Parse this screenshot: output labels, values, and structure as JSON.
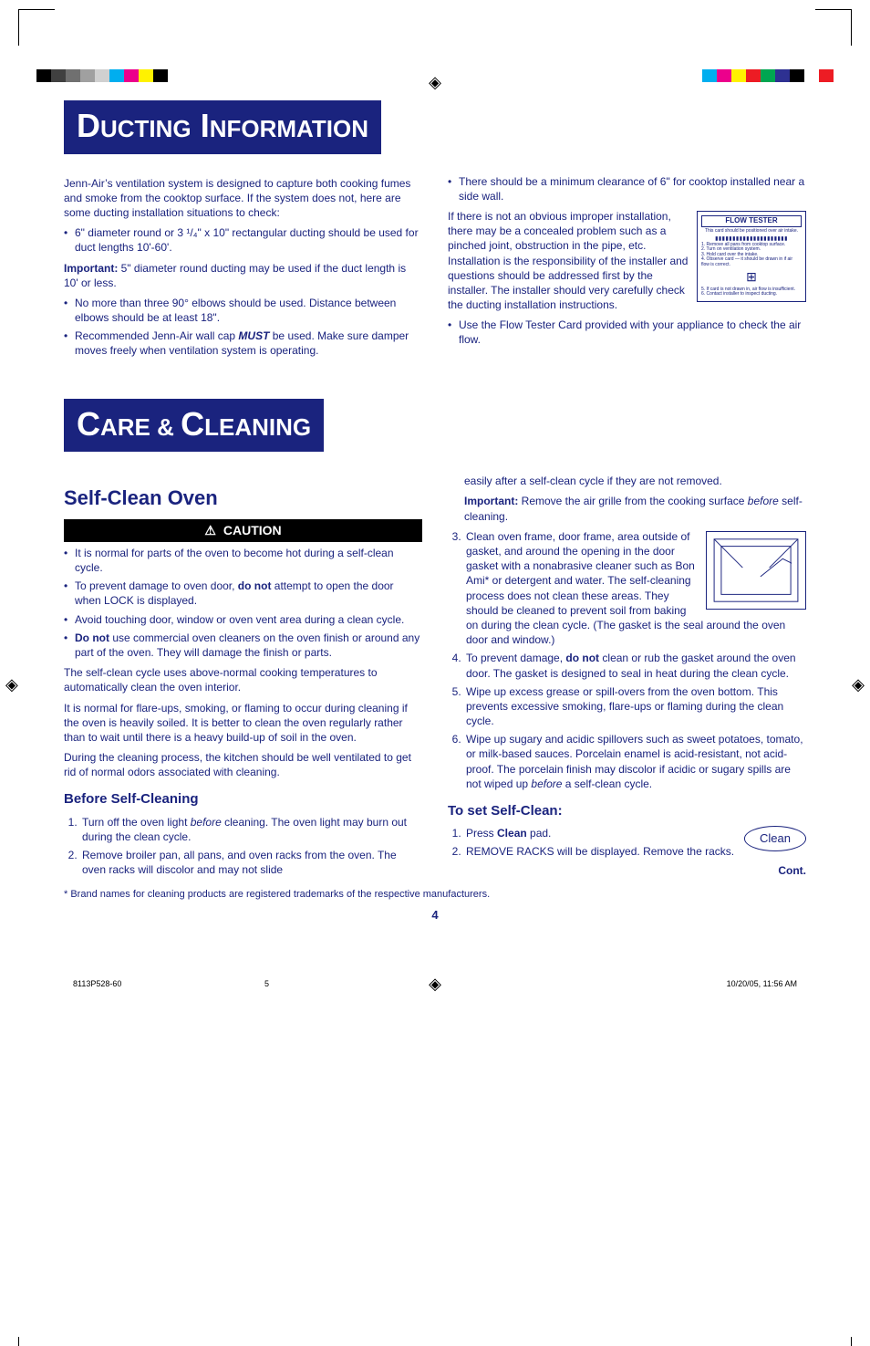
{
  "colors": {
    "brand": "#1a237e",
    "black": "#000000",
    "white": "#ffffff",
    "swatches_left": [
      "#000000",
      "#404040",
      "#707070",
      "#a0a0a0",
      "#d0d0d0",
      "#00aeef",
      "#ec008c",
      "#fff200",
      "#000000"
    ],
    "swatches_right": [
      "#00aeef",
      "#ec008c",
      "#fff200",
      "#ed1c24",
      "#00a651",
      "#2e3192",
      "#000000",
      "#ffffff",
      "#ed1c24"
    ]
  },
  "registration_glyph": "◈",
  "banners": {
    "ducting": {
      "cap1": "D",
      "rest1": "UCTING",
      "space": " ",
      "cap2": "I",
      "rest2": "NFORMATION"
    },
    "care": {
      "cap1": "C",
      "rest1": "ARE",
      "amp": " & ",
      "cap2": "C",
      "rest2": "LEANING"
    }
  },
  "ducting": {
    "left": {
      "intro": "Jenn-Air’s ventilation system is designed to capture both cooking fumes and smoke from the cooktop surface. If the system does not, here are some ducting installation situations to check:",
      "bul1": "6\" diameter round or 3 ¹/₄\" x 10\" rectangular ducting should be used for duct lengths 10'-60'.",
      "important_label": "Important:",
      "important_text": " 5\" diameter round ducting may be used if the duct length is 10' or less.",
      "bul2": "No more than three 90° elbows should be used. Distance between elbows should be at least 18\".",
      "bul3_pre": "Recommended Jenn-Air wall cap ",
      "bul3_must": "MUST",
      "bul3_post": " be used. Make sure damper moves freely when ventilation system is operating."
    },
    "right": {
      "bul1": "There should be a minimum clearance of 6\" for cooktop installed near a side wall.",
      "p1": "If there is not an obvious improper installation, there may be a concealed problem such as a pinched joint, obstruction in the pipe, etc. Installation is the responsibility of the installer and questions should be addressed first by the installer. The installer should very carefully check the ducting installation instructions.",
      "bul2": "Use the Flow Tester Card provided with your appliance to check the air flow.",
      "flow_tester": {
        "title": "FLOW TESTER",
        "sub": "This card should be positioned over air intake.",
        "ticks": "▮▮▮▮▮▮▮▮▮▮▮▮▮▮▮▮▮▮▮▮▮",
        "lines": [
          "1. Remove all pans from cooktop surface.",
          "2. Turn on ventilation system.",
          "3. Hold card over the intake.",
          "4. Observe card — it should be drawn in if air flow is correct."
        ],
        "icon": "⊞",
        "lines2": [
          "5. If card is not drawn in, air flow is insufficient.",
          "6. Contact installer to inspect ducting."
        ]
      }
    }
  },
  "selfclean": {
    "title": "Self-Clean Oven",
    "caution_label": "CAUTION",
    "caution_items": [
      "It is normal for parts of the oven to become hot during a self-clean cycle.",
      {
        "pre": "To prevent damage to oven door, ",
        "bold": "do not",
        "post": " attempt to open the door when LOCK is displayed."
      },
      "Avoid touching door, window or oven vent area during a clean cycle.",
      {
        "boldpre": "Do not",
        "post": " use commercial oven cleaners on the oven finish or around any part of the oven.  They will damage the finish or parts."
      }
    ],
    "p1": "The self-clean cycle uses above-normal cooking temperatures to automatically clean the oven interior.",
    "p2": "It is normal for flare-ups, smoking, or flaming to occur during cleaning if the oven is heavily soiled.  It is better to clean the oven regularly rather than to wait until there is a heavy build-up of soil in the oven.",
    "p3": "During the cleaning process, the kitchen should be well ventilated to get rid of normal odors associated with cleaning.",
    "before_title": "Before Self-Cleaning",
    "before_items": [
      {
        "pre": "Turn off the oven light ",
        "ital": "before",
        "post": " cleaning. The oven light may burn out during the clean cycle."
      },
      "Remove broiler pan, all pans, and oven racks from the oven.  The oven racks will discolor and may not slide"
    ]
  },
  "rightcol": {
    "cont_top": "easily after a self-clean cycle if they are not removed.",
    "important_label": "Important:",
    "important_text": "  Remove the air grille from the cooking surface ",
    "important_ital": "before",
    "important_post": " self-cleaning.",
    "step3": "Clean oven frame, door frame, area outside of gasket, and around the opening in the door gasket with a nonabrasive cleaner such as Bon Ami* or detergent and water.  The self-cleaning process does not clean these areas.  They should be cleaned to prevent soil from baking on during the clean cycle.  (The gasket is the seal around the oven door and window.)",
    "step4_pre": "To prevent damage, ",
    "step4_bold": "do not",
    "step4_post": " clean or rub the gasket around the oven door.  The gasket is designed to seal in heat during the clean cycle.",
    "step5": "Wipe up excess grease or spill-overs from the oven bottom.  This prevents excessive smoking, flare-ups or flaming during the clean cycle.",
    "step6_pre": "Wipe up sugary and acidic spillovers such as sweet potatoes, tomato, or milk-based sauces. Porcelain enamel is acid-resistant, not acid-proof.  The porcelain finish may discolor if acidic or sugary spills are not wiped up ",
    "step6_ital": "before",
    "step6_post": " a self-clean cycle.",
    "toset_title": "To set Self-Clean:",
    "toset1_pre": "Press ",
    "toset1_bold": "Clean",
    "toset1_post": " pad.",
    "toset2": "REMOVE RACKS will be displayed.  Remove the racks.",
    "cont": "Cont.",
    "clean_pad": "Clean"
  },
  "footnote": "* Brand names for cleaning products are registered trademarks of the respective manufacturers.",
  "page_number": "4",
  "footer": {
    "left": "8113P528-60",
    "mid": "5",
    "right": "10/20/05, 11:56 AM"
  }
}
